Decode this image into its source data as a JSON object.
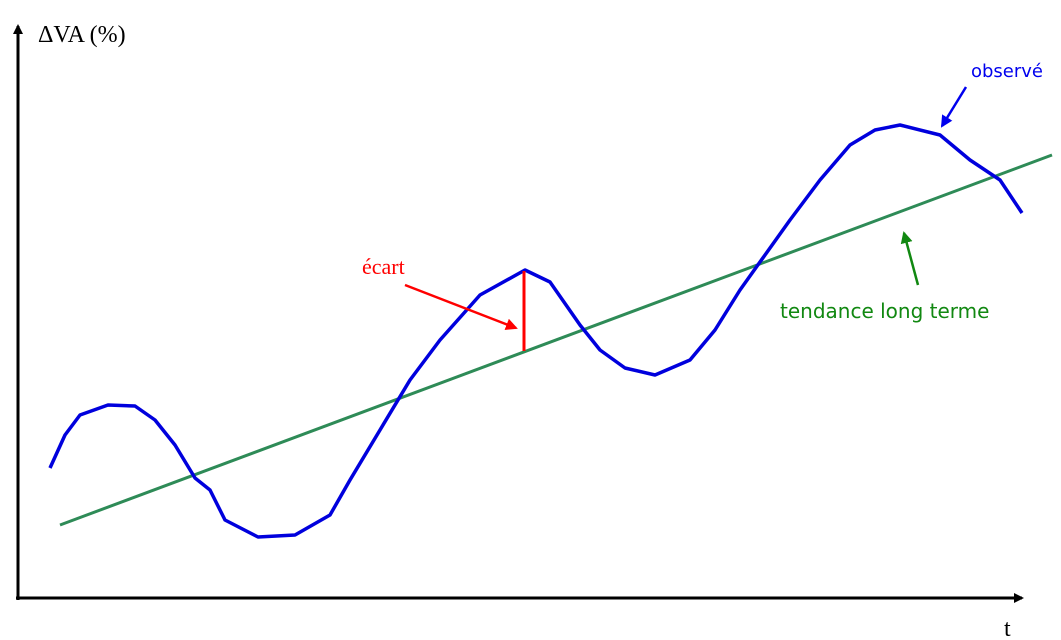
{
  "axes": {
    "y_label": "ΔVA (%)",
    "x_label": "t"
  },
  "labels": {
    "observed": "observé",
    "trend": "tendance long terme",
    "gap": "écart"
  }
}
